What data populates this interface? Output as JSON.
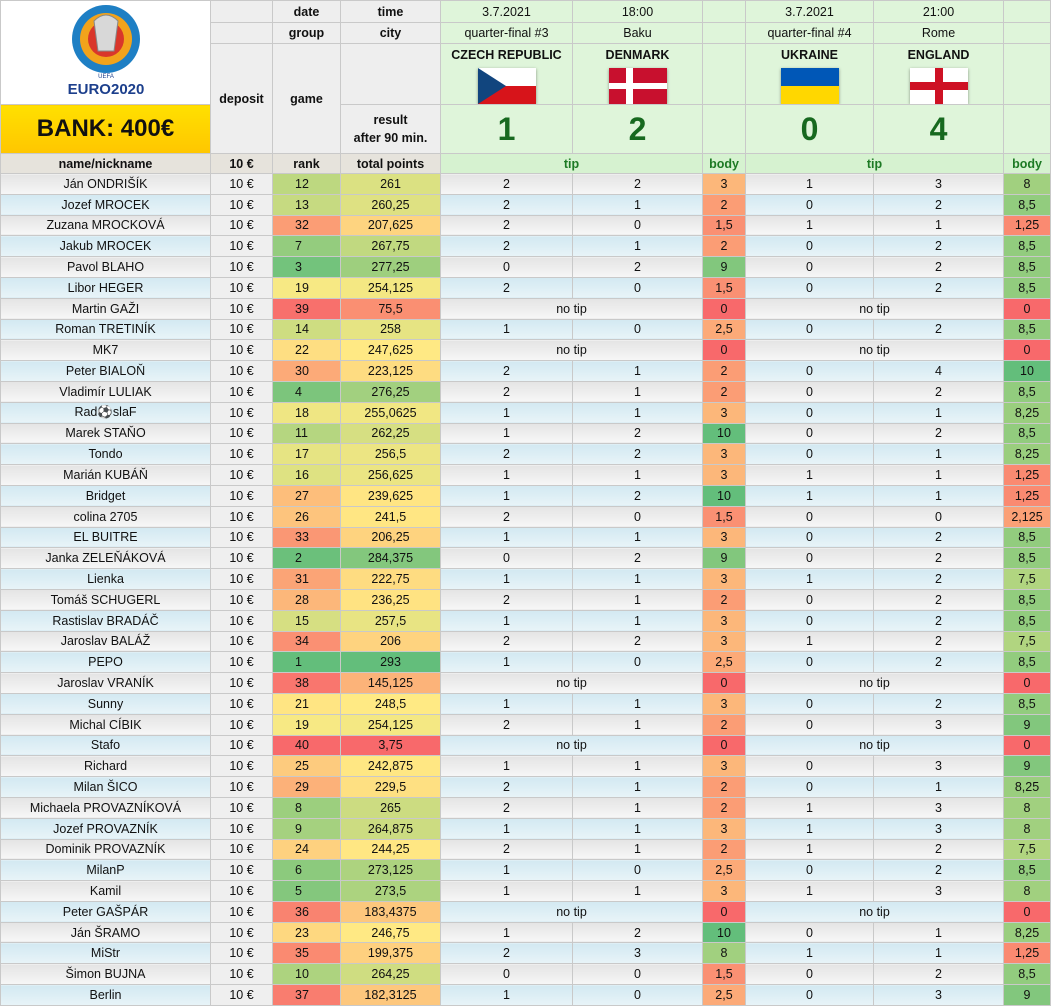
{
  "logo": {
    "uefa": "UEFA",
    "brand": "EURO2020"
  },
  "bank": "BANK: 400€",
  "labels": {
    "date": "date",
    "time": "time",
    "group": "group",
    "city": "city",
    "deposit": "deposit",
    "game": "game",
    "result": [
      "result",
      "after 90 min."
    ]
  },
  "matches": [
    {
      "date": "3.7.2021",
      "time": "18:00",
      "group": "quarter-final #3",
      "city": "Baku",
      "teams": [
        "CZECH REPUBLIC",
        "DENMARK"
      ],
      "result": [
        "1",
        "2"
      ]
    },
    {
      "date": "3.7.2021",
      "time": "21:00",
      "group": "quarter-final #4",
      "city": "Rome",
      "teams": [
        "UKRAINE",
        "ENGLAND"
      ],
      "result": [
        "0",
        "4"
      ]
    }
  ],
  "columns": [
    "name/nickname",
    "10 €",
    "rank",
    "total points",
    "tip",
    "body",
    "tip",
    "body"
  ],
  "rows": [
    [
      "Ján ONDRIŠÍK",
      "10 €",
      "12",
      "261",
      "2",
      "2",
      "3",
      "1",
      "3",
      "8"
    ],
    [
      "Jozef MROCEK",
      "10 €",
      "13",
      "260,25",
      "2",
      "1",
      "2",
      "0",
      "2",
      "8,5"
    ],
    [
      "Zuzana MROCKOVÁ",
      "10 €",
      "32",
      "207,625",
      "2",
      "0",
      "1,5",
      "1",
      "1",
      "1,25"
    ],
    [
      "Jakub MROCEK",
      "10 €",
      "7",
      "267,75",
      "2",
      "1",
      "2",
      "0",
      "2",
      "8,5"
    ],
    [
      "Pavol BLAHO",
      "10 €",
      "3",
      "277,25",
      "0",
      "2",
      "9",
      "0",
      "2",
      "8,5"
    ],
    [
      "Libor HEGER",
      "10 €",
      "19",
      "254,125",
      "2",
      "0",
      "1,5",
      "0",
      "2",
      "8,5"
    ],
    [
      "Martin GAŽI",
      "10 €",
      "39",
      "75,5",
      "no tip",
      "0",
      "no tip",
      "0"
    ],
    [
      "Roman TRETINÍK",
      "10 €",
      "14",
      "258",
      "1",
      "0",
      "2,5",
      "0",
      "2",
      "8,5"
    ],
    [
      "MK7",
      "10 €",
      "22",
      "247,625",
      "no tip",
      "0",
      "no tip",
      "0"
    ],
    [
      "Peter BIALOŇ",
      "10 €",
      "30",
      "223,125",
      "2",
      "1",
      "2",
      "0",
      "4",
      "10"
    ],
    [
      "Vladimír LULIAK",
      "10 €",
      "4",
      "276,25",
      "2",
      "1",
      "2",
      "0",
      "2",
      "8,5"
    ],
    [
      "Rad⚽slaF",
      "10 €",
      "18",
      "255,0625",
      "1",
      "1",
      "3",
      "0",
      "1",
      "8,25"
    ],
    [
      "Marek STAŇO",
      "10 €",
      "11",
      "262,25",
      "1",
      "2",
      "10",
      "0",
      "2",
      "8,5"
    ],
    [
      "Tondo",
      "10 €",
      "17",
      "256,5",
      "2",
      "2",
      "3",
      "0",
      "1",
      "8,25"
    ],
    [
      "Marián KUBÁŇ",
      "10 €",
      "16",
      "256,625",
      "1",
      "1",
      "3",
      "1",
      "1",
      "1,25"
    ],
    [
      "Bridget",
      "10 €",
      "27",
      "239,625",
      "1",
      "2",
      "10",
      "1",
      "1",
      "1,25"
    ],
    [
      "colina 2705",
      "10 €",
      "26",
      "241,5",
      "2",
      "0",
      "1,5",
      "0",
      "0",
      "2,125"
    ],
    [
      "EL BUITRE",
      "10 €",
      "33",
      "206,25",
      "1",
      "1",
      "3",
      "0",
      "2",
      "8,5"
    ],
    [
      "Janka ZELEŇÁKOVÁ",
      "10 €",
      "2",
      "284,375",
      "0",
      "2",
      "9",
      "0",
      "2",
      "8,5"
    ],
    [
      "Lienka",
      "10 €",
      "31",
      "222,75",
      "1",
      "1",
      "3",
      "1",
      "2",
      "7,5"
    ],
    [
      "Tomáš SCHUGERL",
      "10 €",
      "28",
      "236,25",
      "2",
      "1",
      "2",
      "0",
      "2",
      "8,5"
    ],
    [
      "Rastislav BRADÁČ",
      "10 €",
      "15",
      "257,5",
      "1",
      "1",
      "3",
      "0",
      "2",
      "8,5"
    ],
    [
      "Jaroslav BALÁŽ",
      "10 €",
      "34",
      "206",
      "2",
      "2",
      "3",
      "1",
      "2",
      "7,5"
    ],
    [
      "PEPO",
      "10 €",
      "1",
      "293",
      "1",
      "0",
      "2,5",
      "0",
      "2",
      "8,5"
    ],
    [
      "Jaroslav VRANÍK",
      "10 €",
      "38",
      "145,125",
      "no tip",
      "0",
      "no tip",
      "0"
    ],
    [
      "Sunny",
      "10 €",
      "21",
      "248,5",
      "1",
      "1",
      "3",
      "0",
      "2",
      "8,5"
    ],
    [
      "Michal CÍBIK",
      "10 €",
      "19",
      "254,125",
      "2",
      "1",
      "2",
      "0",
      "3",
      "9"
    ],
    [
      "Stafo",
      "10 €",
      "40",
      "3,75",
      "no tip",
      "0",
      "no tip",
      "0"
    ],
    [
      "Richard",
      "10 €",
      "25",
      "242,875",
      "1",
      "1",
      "3",
      "0",
      "3",
      "9"
    ],
    [
      "Milan ŠICO",
      "10 €",
      "29",
      "229,5",
      "2",
      "1",
      "2",
      "0",
      "1",
      "8,25"
    ],
    [
      "Michaela PROVAZNÍKOVÁ",
      "10 €",
      "8",
      "265",
      "2",
      "1",
      "2",
      "1",
      "3",
      "8"
    ],
    [
      "Jozef PROVAZNÍK",
      "10 €",
      "9",
      "264,875",
      "1",
      "1",
      "3",
      "1",
      "3",
      "8"
    ],
    [
      "Dominik PROVAZNÍK",
      "10 €",
      "24",
      "244,25",
      "2",
      "1",
      "2",
      "1",
      "2",
      "7,5"
    ],
    [
      "MilanP",
      "10 €",
      "6",
      "273,125",
      "1",
      "0",
      "2,5",
      "0",
      "2",
      "8,5"
    ],
    [
      "Kamil",
      "10 €",
      "5",
      "273,5",
      "1",
      "1",
      "3",
      "1",
      "3",
      "8"
    ],
    [
      "Peter GAŠPÁR",
      "10 €",
      "36",
      "183,4375",
      "no tip",
      "0",
      "no tip",
      "0"
    ],
    [
      "Ján ŠRAMO",
      "10 €",
      "23",
      "246,75",
      "1",
      "2",
      "10",
      "0",
      "1",
      "8,25"
    ],
    [
      "MiStr",
      "10 €",
      "35",
      "199,375",
      "2",
      "3",
      "8",
      "1",
      "1",
      "1,25"
    ],
    [
      "Šimon BUJNA",
      "10 €",
      "10",
      "264,25",
      "0",
      "0",
      "1,5",
      "0",
      "2",
      "8,5"
    ],
    [
      "Berlin",
      "10 €",
      "37",
      "182,3125",
      "1",
      "0",
      "2,5",
      "0",
      "3",
      "9"
    ]
  ]
}
